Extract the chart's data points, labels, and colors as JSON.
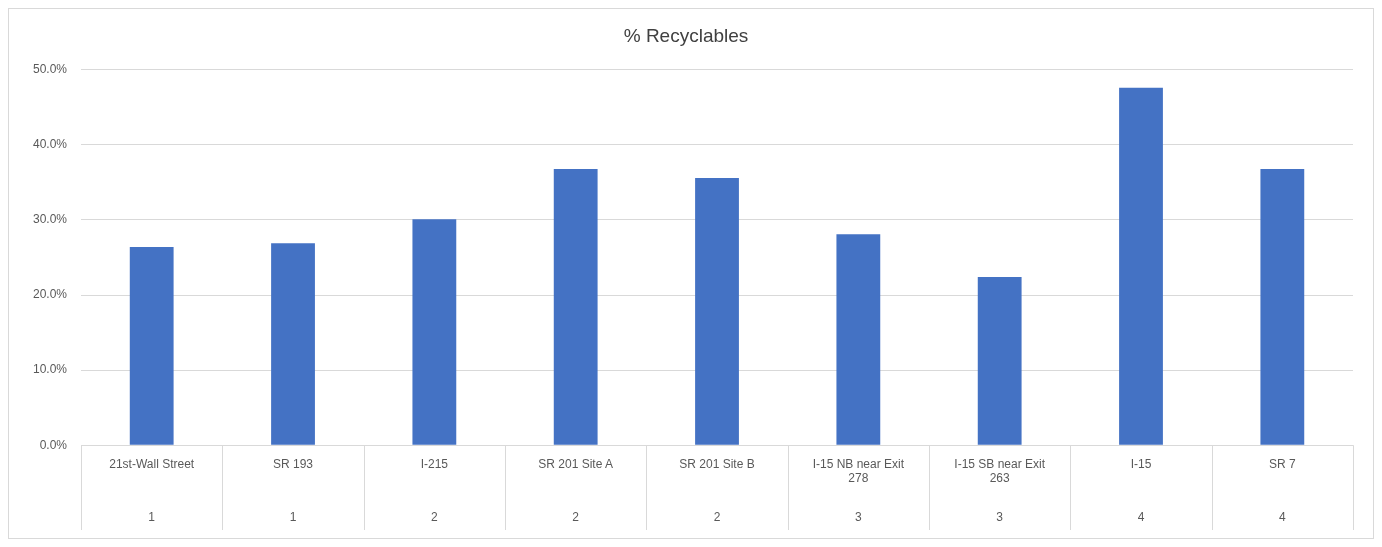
{
  "chart_data": {
    "type": "bar",
    "title": "% Recyclables",
    "categories": [
      "21st-Wall Street",
      "SR 193",
      "I-215",
      "SR 201 Site A",
      "SR 201 Site B",
      "I-15 NB near Exit 278",
      "I-15 SB near Exit 263",
      "I-15",
      "SR 7"
    ],
    "values": [
      26.4,
      26.9,
      30.1,
      36.8,
      35.6,
      28.1,
      22.4,
      47.6,
      36.8
    ],
    "color": "#4472c4",
    "ylim": [
      0,
      50
    ],
    "yticks": [
      {
        "value": 0,
        "label": "0.0%"
      },
      {
        "value": 10,
        "label": "10.0%"
      },
      {
        "value": 20,
        "label": "20.0%"
      },
      {
        "value": 30,
        "label": "30.0%"
      },
      {
        "value": 40,
        "label": "40.0%"
      },
      {
        "value": 50,
        "label": "50.0%"
      }
    ],
    "annotations": [
      "1",
      "1",
      "2",
      "2",
      "2",
      "3",
      "3",
      "4",
      "4"
    ],
    "grid": "y",
    "legend": false
  }
}
